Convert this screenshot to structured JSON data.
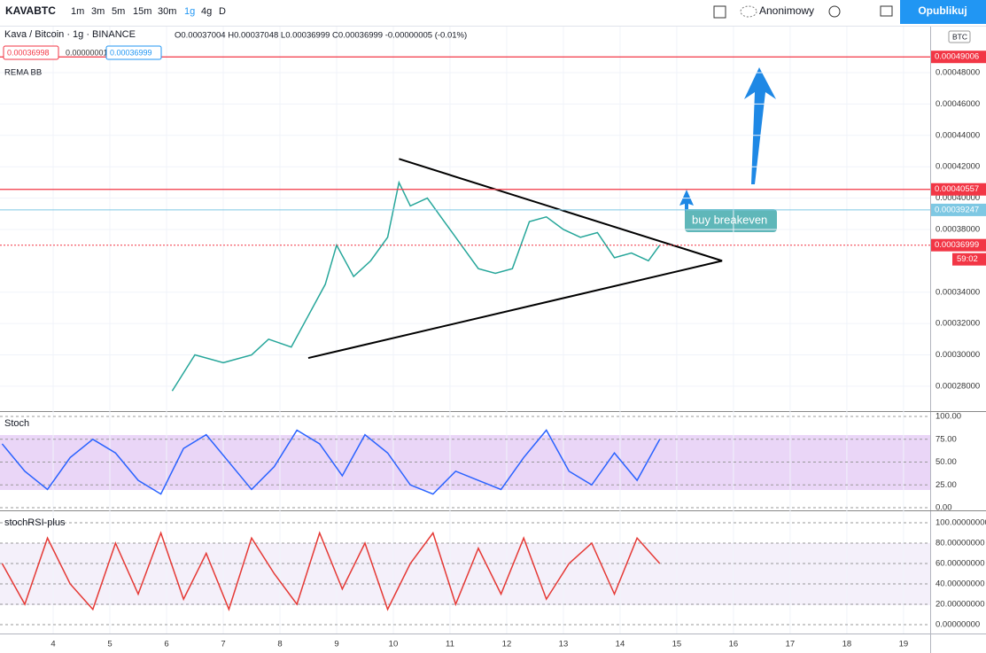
{
  "toolbar": {
    "symbol": "KAVABTC",
    "intervals": [
      "1m",
      "3m",
      "5m",
      "15m",
      "30m",
      "1g",
      "4g",
      "D"
    ],
    "user": "Anonimowy",
    "publish": "Opublikuj"
  },
  "chart_data": [
    {
      "type": "line",
      "title": "Kava / Bitcoin · 1g · BINANCE",
      "ohlc": "O0.00037004 H0.00037048 L0.00036999 C0.00036999 -0.00000005 (-0.01%)",
      "inputs": [
        "0.00036998",
        "0.00000001",
        "0.00036999"
      ],
      "indicator": "REMA BB",
      "currency": "BTC",
      "annotation": "buy breakeven",
      "countdown": "59:02",
      "x": [
        6.1,
        6.5,
        7.0,
        7.5,
        7.8,
        8.2,
        8.5,
        8.8,
        9.0,
        9.3,
        9.6,
        9.9,
        10.1,
        10.3,
        10.6,
        10.9,
        11.2,
        11.5,
        11.8,
        12.1,
        12.4,
        12.7,
        13.0,
        13.3,
        13.6,
        13.9,
        14.2,
        14.5,
        14.7
      ],
      "values": [
        0.000277,
        0.0003,
        0.000295,
        0.0003,
        0.00031,
        0.000305,
        0.000325,
        0.000345,
        0.00037,
        0.00035,
        0.00036,
        0.000375,
        0.00041,
        0.000395,
        0.0004,
        0.000385,
        0.00037,
        0.000355,
        0.000352,
        0.000355,
        0.000385,
        0.000388,
        0.00038,
        0.000375,
        0.000378,
        0.000362,
        0.000365,
        0.00036,
        0.00037
      ],
      "color": "#26a69a",
      "trendlines": [
        {
          "x": [
            10.1,
            15.8
          ],
          "values": [
            0.000425,
            0.00036
          ]
        },
        {
          "x": [
            8.5,
            15.8
          ],
          "values": [
            0.000298,
            0.00036
          ]
        }
      ],
      "price_lines": [
        {
          "value": 0.00049006,
          "color": "#f23645"
        },
        {
          "value": 0.00040557,
          "color": "#f23645"
        },
        {
          "value": 0.00039247,
          "color": "#7ec8e3"
        },
        {
          "value": 0.00036999,
          "color": "#f23645"
        }
      ],
      "xlim": [
        3.0625,
        19.47
      ],
      "xticks": [
        4,
        5,
        6,
        7,
        8,
        9,
        10,
        11,
        12,
        13,
        14,
        15,
        16,
        17,
        18,
        19
      ],
      "ylim": [
        0.0002647,
        0.0005094
      ],
      "yticks": [
        {
          "value": 0.00028,
          "label": "0.00028000"
        },
        {
          "value": 0.0003,
          "label": "0.00030000"
        },
        {
          "value": 0.00032,
          "label": "0.00032000"
        },
        {
          "value": 0.00034,
          "label": "0.00034000"
        },
        {
          "value": 0.00038,
          "label": "0.00038000"
        },
        {
          "value": 0.0004,
          "label": "0.00040000"
        },
        {
          "value": 0.00042,
          "label": "0.00042000"
        },
        {
          "value": 0.00044,
          "label": "0.00044000"
        },
        {
          "value": 0.00046,
          "label": "0.00046000"
        },
        {
          "value": 0.00048,
          "label": "0.00048000"
        }
      ]
    },
    {
      "type": "line",
      "title": "Stoch",
      "x": [
        3.1,
        3.5,
        3.9,
        4.3,
        4.7,
        5.1,
        5.5,
        5.9,
        6.3,
        6.7,
        7.1,
        7.5,
        7.9,
        8.3,
        8.7,
        9.1,
        9.5,
        9.9,
        10.3,
        10.7,
        11.1,
        11.5,
        11.9,
        12.3,
        12.7,
        13.1,
        13.5,
        13.9,
        14.3,
        14.7
      ],
      "values": [
        70,
        40,
        20,
        55,
        75,
        60,
        30,
        15,
        65,
        80,
        50,
        20,
        45,
        85,
        70,
        35,
        80,
        60,
        25,
        15,
        40,
        30,
        20,
        55,
        85,
        40,
        25,
        60,
        30,
        75
      ],
      "color": "#2962ff",
      "ylim": [
        -1.9,
        104.9
      ],
      "yticks": [
        {
          "value": 100,
          "label": "100.00"
        },
        {
          "value": 75,
          "label": "75.00"
        },
        {
          "value": 50,
          "label": "50.00"
        },
        {
          "value": 25,
          "label": "25.00"
        },
        {
          "value": 0,
          "label": "0.00"
        }
      ]
    },
    {
      "type": "line",
      "title": "stochRSI-plus",
      "x": [
        3.1,
        3.5,
        3.9,
        4.3,
        4.7,
        5.1,
        5.5,
        5.9,
        6.3,
        6.7,
        7.1,
        7.5,
        7.9,
        8.3,
        8.7,
        9.1,
        9.5,
        9.9,
        10.3,
        10.7,
        11.1,
        11.5,
        11.9,
        12.3,
        12.7,
        13.1,
        13.5,
        13.9,
        14.3,
        14.7
      ],
      "values": [
        60,
        20,
        85,
        40,
        15,
        80,
        30,
        90,
        25,
        70,
        15,
        85,
        50,
        20,
        90,
        35,
        80,
        15,
        60,
        90,
        20,
        75,
        30,
        85,
        25,
        60,
        80,
        30,
        85,
        60
      ],
      "color": "#e53935",
      "ylim": [
        -8.7,
        111.3
      ],
      "yticks": [
        {
          "value": 100,
          "label": "100.00000000"
        },
        {
          "value": 80,
          "label": "80.00000000"
        },
        {
          "value": 60,
          "label": "60.00000000"
        },
        {
          "value": 40,
          "label": "40.00000000"
        },
        {
          "value": 20,
          "label": "20.00000000"
        },
        {
          "value": 0,
          "label": "0.00000000"
        }
      ]
    }
  ]
}
